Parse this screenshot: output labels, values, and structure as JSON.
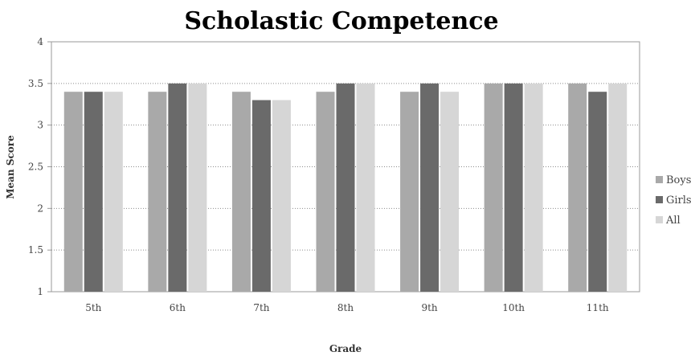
{
  "chart_data": {
    "type": "bar",
    "title": "Scholastic Competence",
    "xlabel": "Grade",
    "ylabel": "Mean Score",
    "categories": [
      "5th",
      "6th",
      "7th",
      "8th",
      "9th",
      "10th",
      "11th"
    ],
    "series": [
      {
        "name": "Boys",
        "color": "#a9a9a9",
        "values": [
          3.4,
          3.4,
          3.4,
          3.4,
          3.4,
          3.5,
          3.5
        ]
      },
      {
        "name": "Girls",
        "color": "#6a6a6a",
        "values": [
          3.4,
          3.5,
          3.3,
          3.5,
          3.5,
          3.5,
          3.4
        ]
      },
      {
        "name": "All",
        "color": "#d6d6d6",
        "values": [
          3.4,
          3.5,
          3.3,
          3.5,
          3.4,
          3.5,
          3.5
        ]
      }
    ],
    "ylim": [
      1,
      4
    ],
    "yticks": [
      "1",
      "1.5",
      "2",
      "2.5",
      "3",
      "3.5",
      "4"
    ],
    "grid": true,
    "legend_position": "right"
  }
}
